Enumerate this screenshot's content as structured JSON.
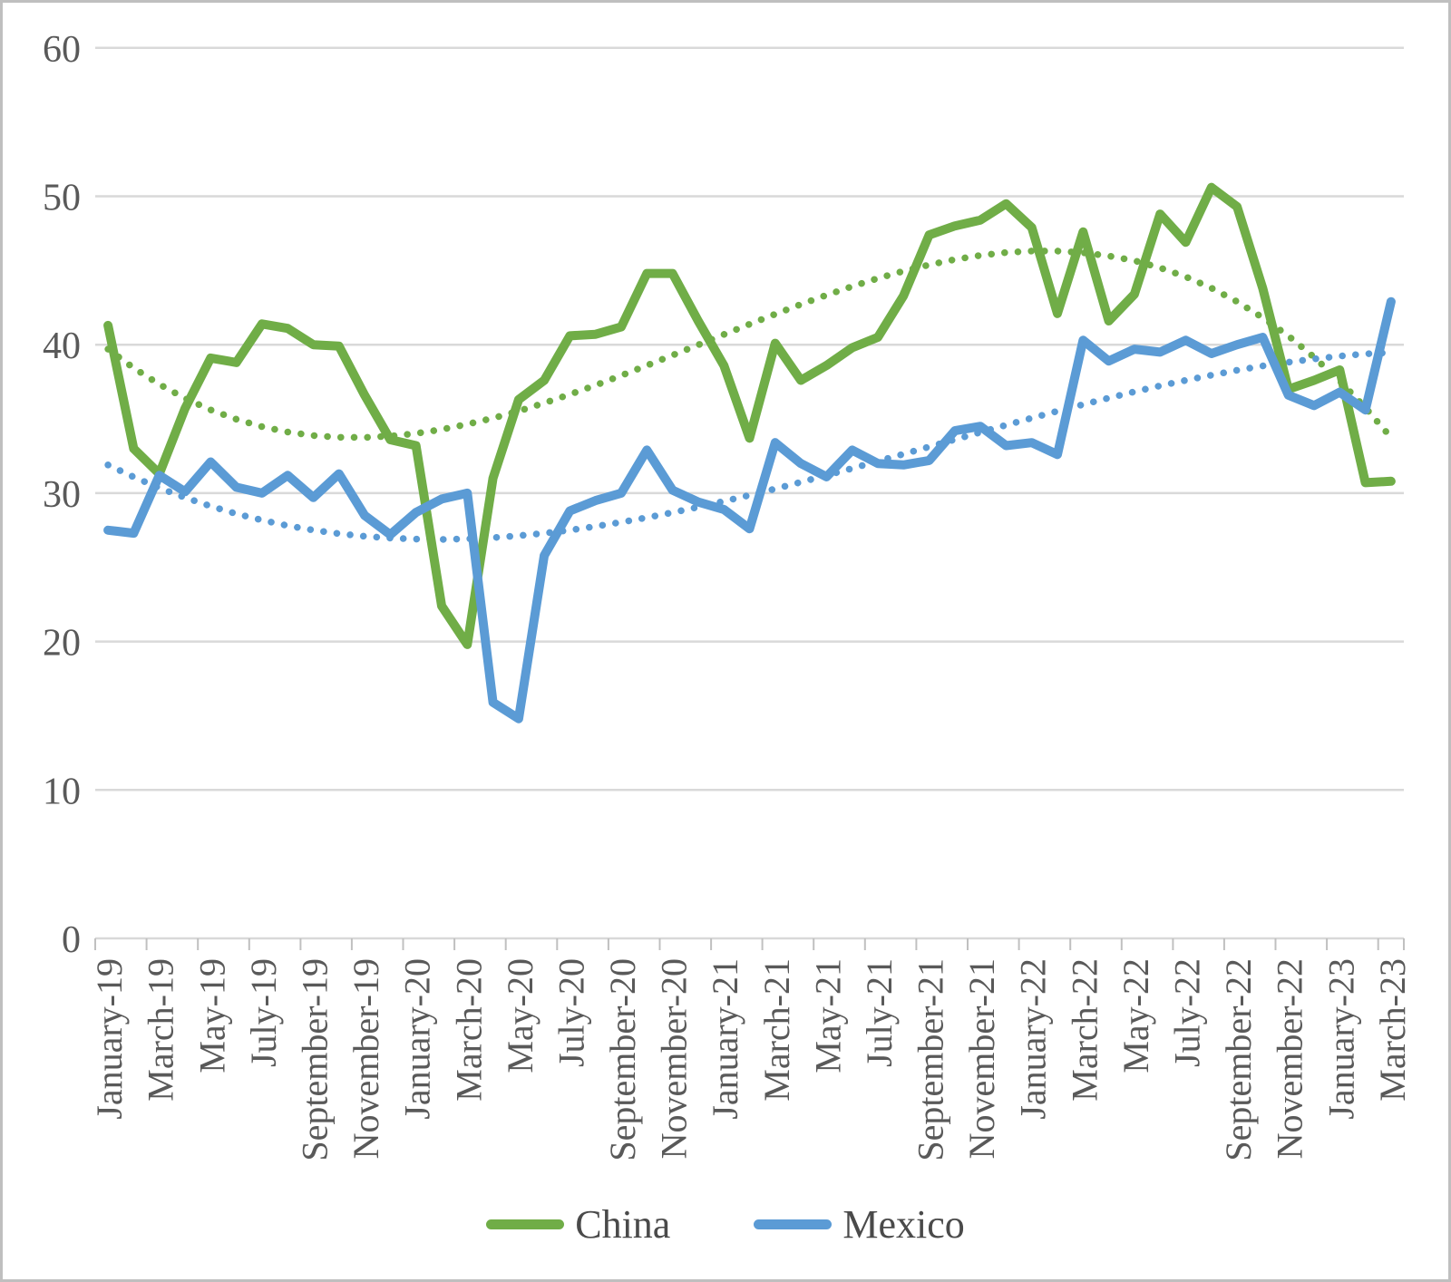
{
  "chart_data": {
    "type": "line",
    "title": "",
    "xlabel": "",
    "ylabel": "",
    "ylim": [
      0,
      60
    ],
    "yticks": [
      0,
      10,
      20,
      30,
      40,
      50,
      60
    ],
    "grid": true,
    "legend_position": "bottom",
    "x_tick_label_every": 2,
    "categories": [
      "January-19",
      "February-19",
      "March-19",
      "April-19",
      "May-19",
      "June-19",
      "July-19",
      "August-19",
      "September-19",
      "October-19",
      "November-19",
      "December-19",
      "January-20",
      "February-20",
      "March-20",
      "April-20",
      "May-20",
      "June-20",
      "July-20",
      "August-20",
      "September-20",
      "October-20",
      "November-20",
      "December-20",
      "January-21",
      "February-21",
      "March-21",
      "April-21",
      "May-21",
      "June-21",
      "July-21",
      "August-21",
      "September-21",
      "October-21",
      "November-21",
      "December-21",
      "January-22",
      "February-22",
      "March-22",
      "April-22",
      "May-22",
      "June-22",
      "July-22",
      "August-22",
      "September-22",
      "October-22",
      "November-22",
      "December-22",
      "January-23",
      "February-23",
      "March-23"
    ],
    "series": [
      {
        "name": "China",
        "color": "#70AD47",
        "values": [
          41.3,
          33.0,
          31.3,
          35.7,
          39.1,
          38.8,
          41.4,
          41.1,
          40.0,
          39.9,
          36.6,
          33.6,
          33.2,
          22.4,
          19.8,
          31.0,
          36.3,
          37.6,
          40.6,
          40.7,
          41.2,
          44.8,
          44.8,
          41.6,
          38.6,
          33.7,
          40.1,
          37.6,
          38.6,
          39.8,
          40.5,
          43.3,
          47.4,
          48.0,
          48.4,
          49.5,
          47.9,
          42.1,
          47.6,
          41.6,
          43.4,
          48.8,
          46.9,
          50.6,
          49.3,
          43.8,
          37.0,
          37.6,
          38.3,
          30.7,
          30.8
        ]
      },
      {
        "name": "Mexico",
        "color": "#5B9BD5",
        "values": [
          27.5,
          27.3,
          31.2,
          30.1,
          32.1,
          30.4,
          30.0,
          31.2,
          29.7,
          31.3,
          28.5,
          27.2,
          28.7,
          29.6,
          30.0,
          15.9,
          14.8,
          25.8,
          28.8,
          29.5,
          30.0,
          32.9,
          30.2,
          29.4,
          28.9,
          27.6,
          33.4,
          32.0,
          31.1,
          32.9,
          32.0,
          31.9,
          32.2,
          34.2,
          34.5,
          33.2,
          33.4,
          32.6,
          40.3,
          38.9,
          39.7,
          39.5,
          40.3,
          39.4,
          40.0,
          40.5,
          36.6,
          35.9,
          36.8,
          35.6,
          42.9
        ]
      }
    ],
    "trendlines": [
      {
        "series": "China",
        "style": "dotted",
        "color": "#70AD47",
        "values": [
          39.7,
          38.43,
          37.33,
          36.39,
          35.61,
          34.98,
          34.48,
          34.12,
          33.88,
          33.76,
          33.75,
          33.84,
          34.02,
          34.29,
          34.64,
          35.05,
          35.53,
          36.07,
          36.65,
          37.27,
          37.92,
          38.6,
          39.29,
          39.99,
          40.69,
          41.38,
          42.06,
          42.72,
          43.34,
          43.93,
          44.47,
          44.96,
          45.38,
          45.74,
          46.02,
          46.21,
          46.31,
          46.31,
          46.2,
          45.98,
          45.66,
          45.18,
          44.58,
          43.82,
          42.9,
          41.82,
          40.59,
          39.16,
          37.56,
          35.75,
          33.75
        ]
      },
      {
        "series": "Mexico",
        "style": "dotted",
        "color": "#5B9BD5",
        "values": [
          31.9,
          31.09,
          30.35,
          29.7,
          29.12,
          28.61,
          28.18,
          27.81,
          27.51,
          27.27,
          27.09,
          26.97,
          26.9,
          26.88,
          26.92,
          27.0,
          27.13,
          27.3,
          27.51,
          27.76,
          28.04,
          28.35,
          28.69,
          29.06,
          29.45,
          29.86,
          30.29,
          30.74,
          31.2,
          31.67,
          32.15,
          32.63,
          33.12,
          33.61,
          34.1,
          34.58,
          35.06,
          35.52,
          35.97,
          36.41,
          36.83,
          37.23,
          37.6,
          37.95,
          38.28,
          38.57,
          38.82,
          39.04,
          39.23,
          39.38,
          39.47
        ]
      }
    ]
  },
  "legend": {
    "items": [
      {
        "label": "China",
        "color": "#70AD47"
      },
      {
        "label": "Mexico",
        "color": "#5B9BD5"
      }
    ]
  },
  "style": {
    "gridline_color": "#D9D9D9",
    "tick_color": "#C0C0C0",
    "axis_text_color": "#595959",
    "border_color": "#BFBFBF"
  }
}
